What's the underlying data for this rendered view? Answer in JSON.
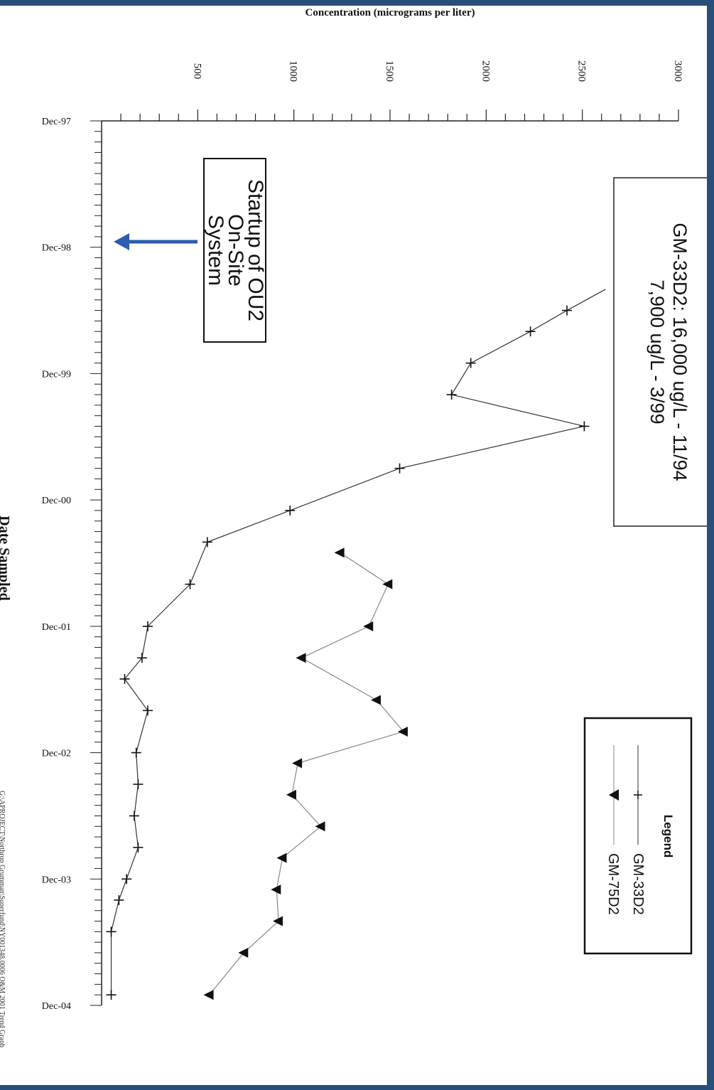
{
  "chart_data": {
    "type": "line",
    "orientation": "rotated-90-clockwise",
    "ylabel": "Concentration (micrograms per liter)",
    "xlabel": "Date Sampled",
    "ylim": [
      0,
      3000
    ],
    "y_ticks": [
      500,
      1000,
      1500,
      2000,
      2500,
      3000
    ],
    "x_range": [
      "1997-12",
      "2004-12"
    ],
    "x_tick_labels": [
      "Dec-97",
      "Dec-98",
      "Dec-99",
      "Dec-00",
      "Dec-01",
      "Dec-02",
      "Dec-03",
      "Dec-04"
    ],
    "series": [
      {
        "name": "GM-33D2",
        "marker": "plus",
        "color": "#333333",
        "points": [
          {
            "x": "1999-04",
            "y": 2620
          },
          {
            "x": "1999-06",
            "y": 2420
          },
          {
            "x": "1999-08",
            "y": 2230
          },
          {
            "x": "1999-11",
            "y": 1920
          },
          {
            "x": "2000-02",
            "y": 1820
          },
          {
            "x": "2000-05",
            "y": 2510
          },
          {
            "x": "2000-09",
            "y": 1550
          },
          {
            "x": "2001-01",
            "y": 980
          },
          {
            "x": "2001-04",
            "y": 550
          },
          {
            "x": "2001-08",
            "y": 460
          },
          {
            "x": "2001-12",
            "y": 240
          },
          {
            "x": "2002-03",
            "y": 210
          },
          {
            "x": "2002-05",
            "y": 120
          },
          {
            "x": "2002-08",
            "y": 240
          },
          {
            "x": "2002-12",
            "y": 180
          },
          {
            "x": "2003-03",
            "y": 190
          },
          {
            "x": "2003-06",
            "y": 170
          },
          {
            "x": "2003-09",
            "y": 190
          },
          {
            "x": "2003-12",
            "y": 130
          },
          {
            "x": "2004-02",
            "y": 90
          },
          {
            "x": "2004-05",
            "y": 50
          },
          {
            "x": "2004-11",
            "y": 50
          }
        ]
      },
      {
        "name": "GM-75D2",
        "marker": "triangle",
        "color": "#888888",
        "points": [
          {
            "x": "2001-05",
            "y": 1240
          },
          {
            "x": "2001-08",
            "y": 1490
          },
          {
            "x": "2001-12",
            "y": 1390
          },
          {
            "x": "2002-03",
            "y": 1040
          },
          {
            "x": "2002-07",
            "y": 1430
          },
          {
            "x": "2002-10",
            "y": 1570
          },
          {
            "x": "2003-01",
            "y": 1020
          },
          {
            "x": "2003-04",
            "y": 990
          },
          {
            "x": "2003-07",
            "y": 1140
          },
          {
            "x": "2003-10",
            "y": 940
          },
          {
            "x": "2004-01",
            "y": 910
          },
          {
            "x": "2004-04",
            "y": 920
          },
          {
            "x": "2004-07",
            "y": 740
          },
          {
            "x": "2004-11",
            "y": 560
          }
        ]
      }
    ],
    "legend": {
      "title": "Legend",
      "position": "top-right",
      "entries": [
        "GM-33D2",
        "GM-75D2"
      ]
    },
    "annotations": {
      "max_values_line1": "GM-33D2: 16,000 ug/L - 11/94",
      "max_values_line2": "7,900 ug/L - 3/99",
      "startup_line1": "Startup of OU2",
      "startup_line2": "On-Site",
      "startup_line3": "System"
    },
    "footer": "G:\\APROJECT\\Northrop Grumman\\Superfund\\NY001348.0006 O&M 2001 Trend Graph"
  }
}
